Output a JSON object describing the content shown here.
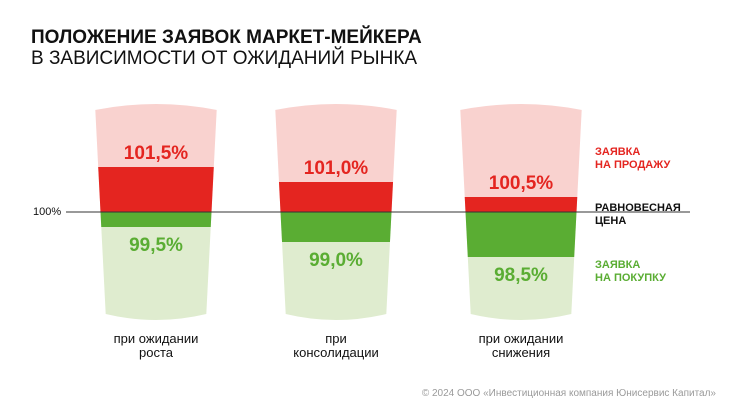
{
  "title": "ПОЛОЖЕНИЕ ЗАЯВОК МАРКЕТ-МЕЙКЕРА",
  "subtitle": "В ЗАВИСИМОСТИ ОТ ОЖИДАНИЙ РЫНКА",
  "legend": {
    "sell": "ЗАЯВКА\nНА ПРОДАЖУ",
    "equilibrium": "РАВНОВЕСНАЯ\nЦЕНА",
    "buy": "ЗАЯВКА\nНА ПОКУПКУ"
  },
  "reference_label": "100%",
  "footer": "© 2024 ООО «Инвестиционная компания Юнисервис Капитал»",
  "colors": {
    "sell_dark": "#e42520",
    "sell_light": "#f9d2cf",
    "buy_dark": "#5aad33",
    "buy_light": "#dfeccf",
    "reference_line": "#333333"
  },
  "chart_data": {
    "type": "bar",
    "categories": [
      "при ожидании\nроста",
      "при\nконсолидации",
      "при ожидании\nснижения"
    ],
    "reference_value": 100,
    "series": [
      {
        "name": "ЗАЯВКА НА ПРОДАЖУ",
        "values": [
          101.5,
          101.0,
          100.5
        ],
        "labels": [
          "101,5%",
          "101,0%",
          "100,5%"
        ]
      },
      {
        "name": "ЗАЯВКА НА ПОКУПКУ",
        "values": [
          99.5,
          99.0,
          98.5
        ],
        "labels": [
          "99,5%",
          "99,0%",
          "98,5%"
        ]
      }
    ]
  }
}
